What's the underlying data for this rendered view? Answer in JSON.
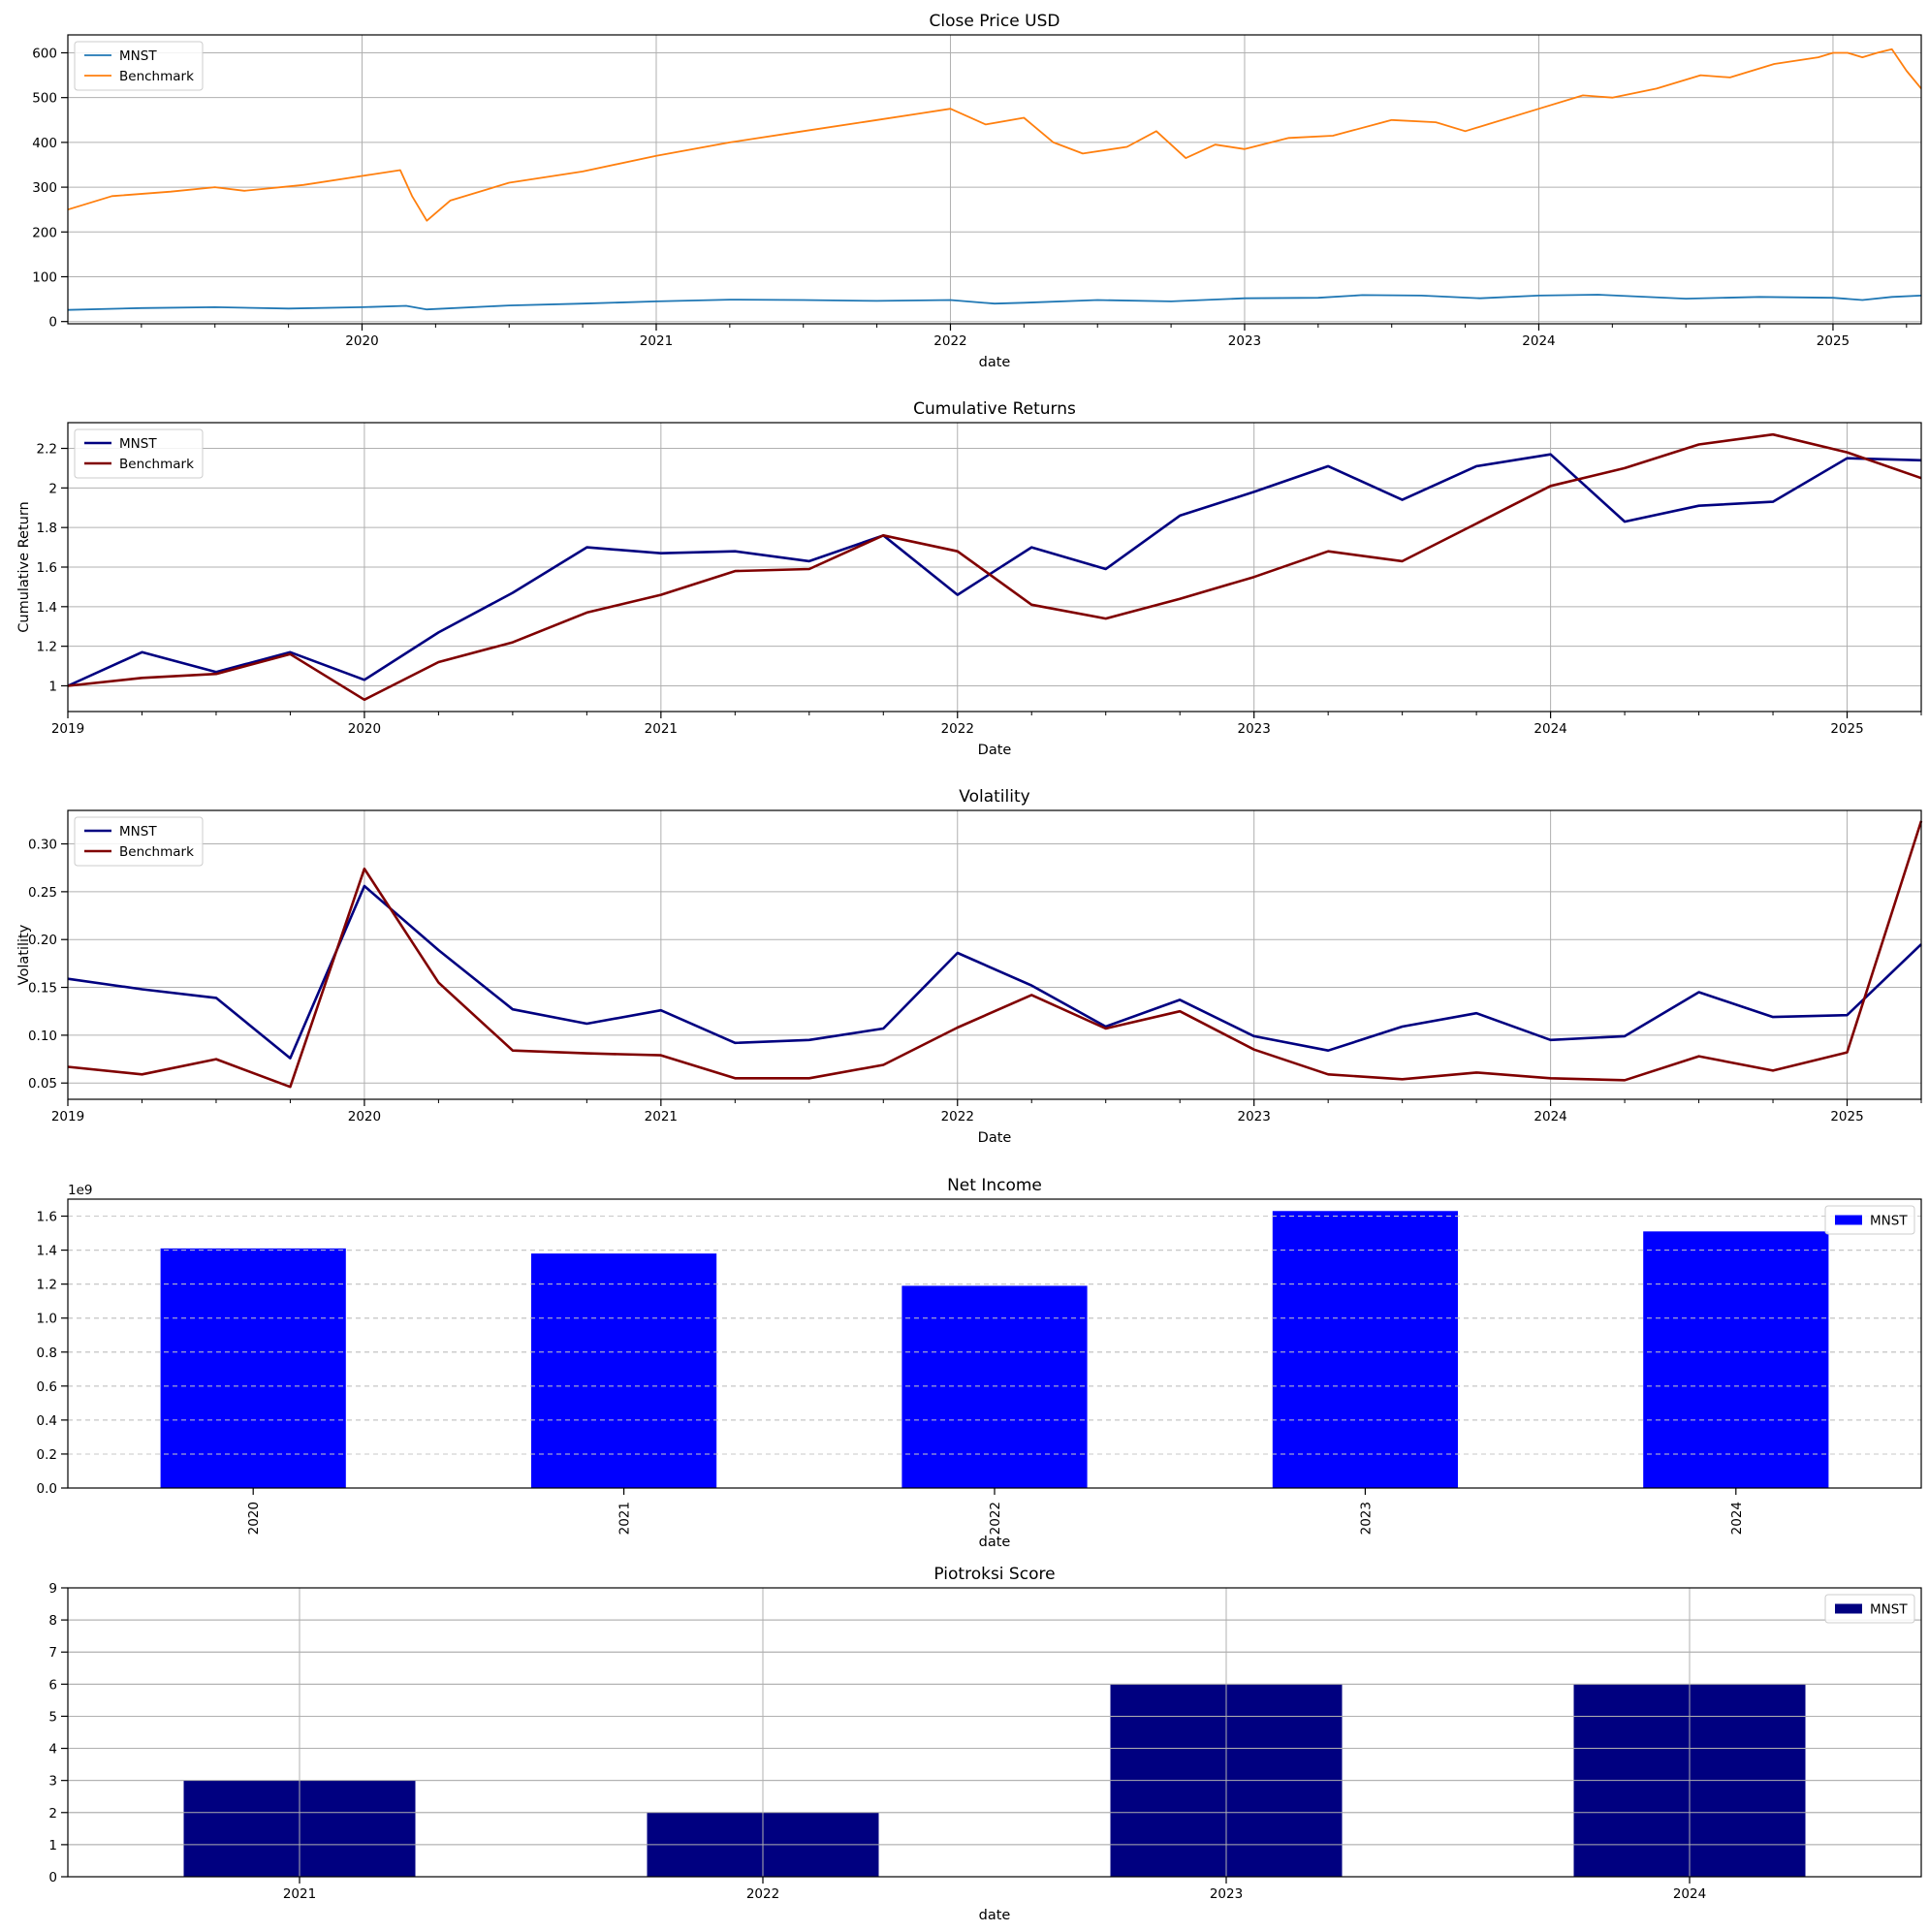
{
  "chart_data": [
    {
      "type": "line",
      "title": "Close Price USD",
      "xlabel": "date",
      "ylabel": "",
      "xlim": [
        2019.0,
        2025.3
      ],
      "ylim": [
        -5,
        640
      ],
      "yticks": [
        0,
        100,
        200,
        300,
        400,
        500,
        600
      ],
      "xticks": [
        2020,
        2021,
        2022,
        2023,
        2024,
        2025
      ],
      "grid": true,
      "legend_position": "top-left",
      "series": [
        {
          "name": "MNST",
          "color": "#1f77b4",
          "x": [
            2019.0,
            2019.25,
            2019.5,
            2019.75,
            2020.0,
            2020.15,
            2020.22,
            2020.5,
            2020.75,
            2021.0,
            2021.25,
            2021.5,
            2021.75,
            2022.0,
            2022.15,
            2022.25,
            2022.5,
            2022.75,
            2023.0,
            2023.25,
            2023.4,
            2023.6,
            2023.8,
            2024.0,
            2024.2,
            2024.5,
            2024.75,
            2025.0,
            2025.1,
            2025.2,
            2025.3
          ],
          "y": [
            26,
            30,
            32,
            29,
            32,
            35,
            27,
            36,
            40,
            45,
            49,
            48,
            46,
            48,
            40,
            42,
            48,
            45,
            52,
            53,
            59,
            58,
            52,
            58,
            60,
            51,
            55,
            53,
            48,
            55,
            58
          ]
        },
        {
          "name": "Benchmark",
          "color": "#ff7f0e",
          "x": [
            2019.0,
            2019.15,
            2019.35,
            2019.5,
            2019.6,
            2019.8,
            2020.0,
            2020.13,
            2020.17,
            2020.22,
            2020.3,
            2020.5,
            2020.75,
            2021.0,
            2021.25,
            2021.5,
            2021.75,
            2021.9,
            2022.0,
            2022.12,
            2022.25,
            2022.35,
            2022.45,
            2022.6,
            2022.7,
            2022.8,
            2022.9,
            2023.0,
            2023.15,
            2023.3,
            2023.5,
            2023.65,
            2023.75,
            2024.0,
            2024.15,
            2024.25,
            2024.4,
            2024.55,
            2024.65,
            2024.8,
            2024.95,
            2025.0,
            2025.05,
            2025.1,
            2025.15,
            2025.2,
            2025.25,
            2025.3
          ],
          "y": [
            250,
            280,
            290,
            300,
            292,
            305,
            325,
            338,
            280,
            225,
            270,
            310,
            335,
            370,
            400,
            425,
            450,
            465,
            475,
            440,
            455,
            400,
            375,
            390,
            425,
            365,
            395,
            385,
            410,
            415,
            450,
            445,
            425,
            475,
            505,
            500,
            520,
            550,
            545,
            575,
            590,
            600,
            600,
            590,
            600,
            608,
            560,
            520
          ]
        }
      ]
    },
    {
      "type": "line",
      "title": "Cumulative Returns",
      "xlabel": "Date",
      "ylabel": "Cumulative Return",
      "xlim": [
        2019.0,
        2025.25
      ],
      "ylim": [
        0.87,
        2.33
      ],
      "yticks": [
        1.0,
        1.2,
        1.4,
        1.6,
        1.8,
        2.0,
        2.2
      ],
      "xticks": [
        2019,
        2020,
        2021,
        2022,
        2023,
        2024,
        2025
      ],
      "grid": true,
      "legend_position": "top-left",
      "series": [
        {
          "name": "MNST",
          "color": "#000080",
          "x": [
            2019.0,
            2019.25,
            2019.5,
            2019.75,
            2020.0,
            2020.25,
            2020.5,
            2020.75,
            2021.0,
            2021.25,
            2021.5,
            2021.75,
            2022.0,
            2022.25,
            2022.5,
            2022.75,
            2023.0,
            2023.25,
            2023.5,
            2023.75,
            2024.0,
            2024.25,
            2024.5,
            2024.75,
            2025.0,
            2025.25
          ],
          "y": [
            1.0,
            1.17,
            1.07,
            1.17,
            1.03,
            1.27,
            1.47,
            1.7,
            1.67,
            1.68,
            1.63,
            1.76,
            1.46,
            1.7,
            1.59,
            1.86,
            1.98,
            2.11,
            1.94,
            2.11,
            2.17,
            1.83,
            1.91,
            1.93,
            2.15,
            2.14
          ]
        },
        {
          "name": "Benchmark",
          "color": "#800000",
          "x": [
            2019.0,
            2019.25,
            2019.5,
            2019.75,
            2020.0,
            2020.25,
            2020.5,
            2020.75,
            2021.0,
            2021.25,
            2021.5,
            2021.75,
            2022.0,
            2022.25,
            2022.5,
            2022.75,
            2023.0,
            2023.25,
            2023.5,
            2023.75,
            2024.0,
            2024.25,
            2024.5,
            2024.75,
            2025.0,
            2025.25
          ],
          "y": [
            1.0,
            1.04,
            1.06,
            1.16,
            0.93,
            1.12,
            1.22,
            1.37,
            1.46,
            1.58,
            1.59,
            1.76,
            1.68,
            1.41,
            1.34,
            1.44,
            1.55,
            1.68,
            1.63,
            1.82,
            2.01,
            2.1,
            2.22,
            2.27,
            2.18,
            2.05
          ]
        }
      ]
    },
    {
      "type": "line",
      "title": "Volatility",
      "xlabel": "Date",
      "ylabel": "Volatility",
      "xlim": [
        2019.0,
        2025.25
      ],
      "ylim": [
        0.033,
        0.335
      ],
      "yticks": [
        0.05,
        0.1,
        0.15,
        0.2,
        0.25,
        0.3
      ],
      "ytick_labels": [
        "0.05",
        "0.10",
        "0.15",
        "0.20",
        "0.25",
        "0.30"
      ],
      "xticks": [
        2019,
        2020,
        2021,
        2022,
        2023,
        2024,
        2025
      ],
      "grid": true,
      "legend_position": "top-left",
      "series": [
        {
          "name": "MNST",
          "color": "#000080",
          "x": [
            2019.0,
            2019.25,
            2019.5,
            2019.75,
            2020.0,
            2020.25,
            2020.5,
            2020.75,
            2021.0,
            2021.25,
            2021.5,
            2021.75,
            2022.0,
            2022.25,
            2022.5,
            2022.75,
            2023.0,
            2023.25,
            2023.5,
            2023.75,
            2024.0,
            2024.25,
            2024.5,
            2024.75,
            2025.0,
            2025.25
          ],
          "y": [
            0.159,
            0.148,
            0.139,
            0.076,
            0.256,
            0.189,
            0.127,
            0.112,
            0.126,
            0.092,
            0.095,
            0.107,
            0.186,
            0.152,
            0.109,
            0.137,
            0.099,
            0.084,
            0.109,
            0.123,
            0.095,
            0.099,
            0.145,
            0.119,
            0.121,
            0.195
          ]
        },
        {
          "name": "Benchmark",
          "color": "#800000",
          "x": [
            2019.0,
            2019.25,
            2019.5,
            2019.75,
            2020.0,
            2020.25,
            2020.5,
            2020.75,
            2021.0,
            2021.25,
            2021.5,
            2021.75,
            2022.0,
            2022.25,
            2022.5,
            2022.75,
            2023.0,
            2023.25,
            2023.5,
            2023.75,
            2024.0,
            2024.25,
            2024.5,
            2024.75,
            2025.0,
            2025.25
          ],
          "y": [
            0.067,
            0.059,
            0.075,
            0.046,
            0.274,
            0.155,
            0.084,
            0.081,
            0.079,
            0.055,
            0.055,
            0.069,
            0.108,
            0.142,
            0.107,
            0.125,
            0.085,
            0.059,
            0.054,
            0.061,
            0.055,
            0.053,
            0.078,
            0.063,
            0.082,
            0.324
          ]
        }
      ]
    },
    {
      "type": "bar",
      "title": "Net Income",
      "xlabel": "date",
      "ylabel": "",
      "offset_label": "1e9",
      "categories": [
        "2020",
        "2021",
        "2022",
        "2023",
        "2024"
      ],
      "ylim": [
        0,
        1.7
      ],
      "yticks": [
        0,
        0.2,
        0.4,
        0.6,
        0.8,
        1.0,
        1.2,
        1.4,
        1.6
      ],
      "ytick_labels": [
        "0.0",
        "0.2",
        "0.4",
        "0.6",
        "0.8",
        "1.0",
        "1.2",
        "1.4",
        "1.6"
      ],
      "grid": "horizontal-dashed",
      "legend_position": "top-right",
      "rotated_tick_labels": true,
      "series": [
        {
          "name": "MNST",
          "color": "#0000ff",
          "values": [
            1.41,
            1.38,
            1.19,
            1.63,
            1.51
          ]
        }
      ]
    },
    {
      "type": "bar",
      "title": "Piotroksi Score",
      "xlabel": "date",
      "ylabel": "",
      "categories": [
        "2021",
        "2022",
        "2023",
        "2024"
      ],
      "ylim": [
        0,
        9
      ],
      "yticks": [
        0,
        1,
        2,
        3,
        4,
        5,
        6,
        7,
        8,
        9
      ],
      "grid": true,
      "legend_position": "top-right",
      "rotated_tick_labels": false,
      "series": [
        {
          "name": "MNST",
          "color": "#000080",
          "values": [
            3,
            2,
            6,
            6
          ]
        }
      ]
    }
  ]
}
